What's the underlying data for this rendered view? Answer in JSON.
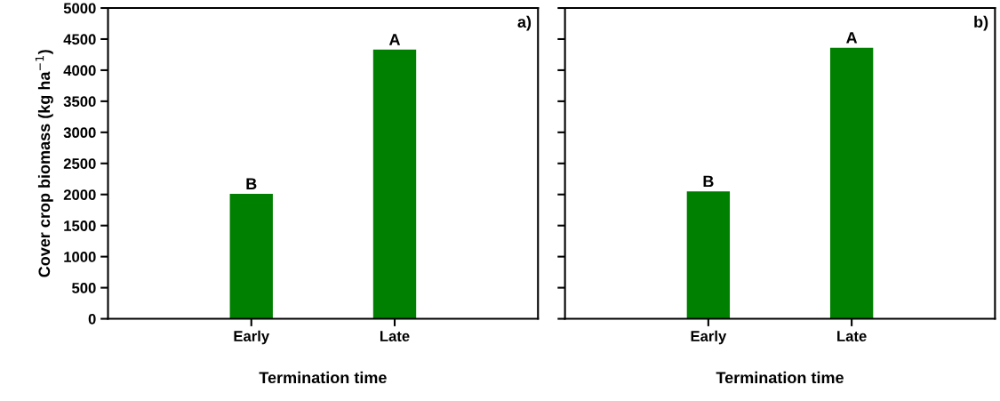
{
  "chart_data": [
    {
      "type": "bar",
      "categories": [
        "Early",
        "Late"
      ],
      "values": [
        2010,
        4330
      ],
      "color": "#008000",
      "value_labels": [
        "B",
        "A"
      ],
      "xlabel": "Termination time",
      "ylabel": "Cover crop biomass (kg ha$^{−1}$)",
      "ylim": [
        0,
        5000
      ],
      "yticks": [
        0,
        500,
        1000,
        1500,
        2000,
        2500,
        3000,
        3500,
        4000,
        4500,
        5000
      ],
      "annotations": [
        "a)"
      ],
      "grid": false,
      "legend": false
    },
    {
      "type": "bar",
      "categories": [
        "Early",
        "Late"
      ],
      "values": [
        2050,
        4360
      ],
      "color": "#008000",
      "value_labels": [
        "B",
        "A"
      ],
      "xlabel": "Termination time",
      "ylim": [
        0,
        5000
      ],
      "yticks": [
        0,
        500,
        1000,
        1500,
        2000,
        2500,
        3000,
        3500,
        4000,
        4500,
        5000
      ],
      "tick_labels": "x",
      "annotations": [
        "b)"
      ],
      "grid": false,
      "legend": false
    }
  ]
}
